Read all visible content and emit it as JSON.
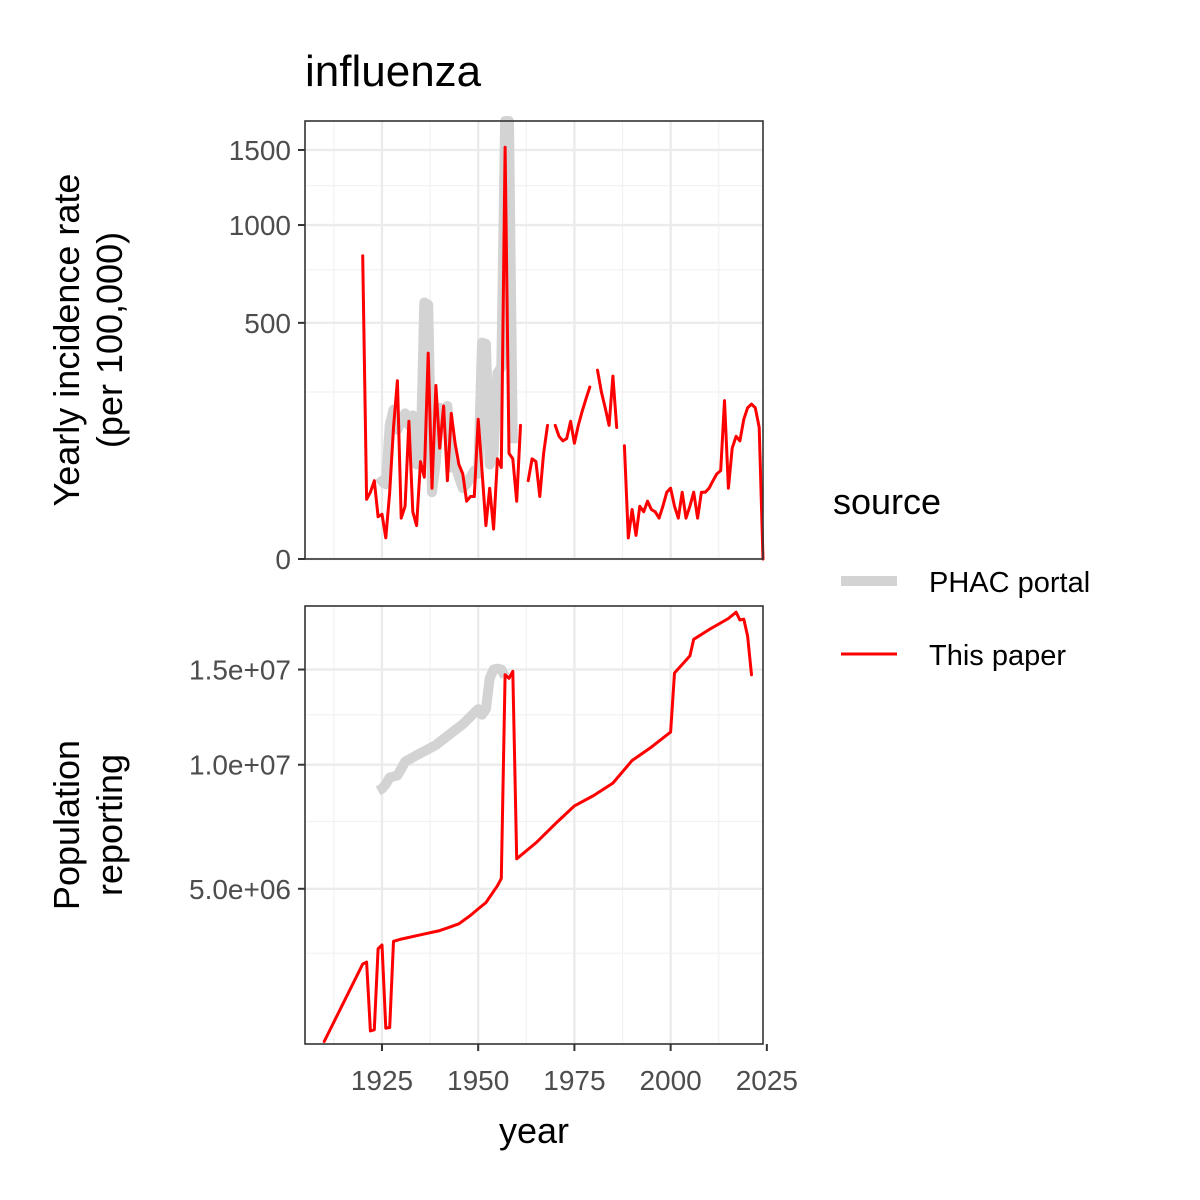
{
  "title": "influenza",
  "legend": {
    "title": "source",
    "entries": [
      {
        "label": "PHAC portal",
        "color": "#d3d3d3"
      },
      {
        "label": "This paper",
        "color": "#ff0000"
      }
    ]
  },
  "chart_data": [
    {
      "type": "line",
      "panel": "top",
      "ylabel_line1": "Yearly incidence rate",
      "ylabel_line2": "(per 100,000)",
      "xlabel": "",
      "y_scale": "sqrt",
      "ylim": [
        0,
        1720
      ],
      "xlim": [
        1905,
        2024
      ],
      "yticks": [
        0,
        500,
        1000,
        1500
      ],
      "ytick_labels": [
        "0",
        "500",
        "1000",
        "1500"
      ],
      "grid": true,
      "series": [
        {
          "name": "PHAC portal",
          "color": "#d3d3d3",
          "segments": [
            [
              [
                1924,
                50
              ],
              [
                1925,
                55
              ],
              [
                1926,
                50
              ],
              [
                1927,
                160
              ],
              [
                1928,
                200
              ],
              [
                1929,
                150
              ],
              [
                1930,
                170
              ],
              [
                1931,
                190
              ],
              [
                1932,
                160
              ],
              [
                1933,
                185
              ],
              [
                1934,
                80
              ],
              [
                1935,
                90
              ],
              [
                1936,
                590
              ],
              [
                1937,
                580
              ],
              [
                1938,
                40
              ],
              [
                1939,
                85
              ],
              [
                1940,
                205
              ],
              [
                1941,
                175
              ],
              [
                1942,
                210
              ],
              [
                1943,
                75
              ],
              [
                1944,
                80
              ],
              [
                1945,
                60
              ],
              [
                1946,
                45
              ],
              [
                1947,
                50
              ],
              [
                1948,
                60
              ],
              [
                1949,
                70
              ],
              [
                1950,
                65
              ],
              [
                1951,
                420
              ],
              [
                1952,
                415
              ],
              [
                1953,
                80
              ],
              [
                1954,
                100
              ],
              [
                1955,
                310
              ],
              [
                1956,
                330
              ],
              [
                1957,
                1720
              ],
              [
                1958,
                1720
              ],
              [
                1959,
                120
              ]
            ]
          ]
        },
        {
          "name": "This paper",
          "color": "#ff0000",
          "segments": [
            [
              [
                1920,
                825
              ],
              [
                1921,
                32
              ],
              [
                1922,
                40
              ],
              [
                1923,
                55
              ],
              [
                1924,
                16
              ],
              [
                1925,
                18
              ],
              [
                1926,
                4
              ],
              [
                1927,
                40
              ],
              [
                1928,
                155
              ],
              [
                1929,
                285
              ],
              [
                1930,
                15
              ],
              [
                1931,
                25
              ],
              [
                1932,
                170
              ],
              [
                1933,
                20
              ],
              [
                1934,
                10
              ],
              [
                1935,
                85
              ],
              [
                1936,
                60
              ],
              [
                1937,
                380
              ],
              [
                1938,
                45
              ],
              [
                1939,
                270
              ],
              [
                1940,
                110
              ],
              [
                1941,
                210
              ],
              [
                1942,
                55
              ],
              [
                1943,
                190
              ],
              [
                1944,
                120
              ],
              [
                1945,
                80
              ],
              [
                1946,
                65
              ],
              [
                1947,
                30
              ],
              [
                1948,
                35
              ],
              [
                1949,
                35
              ],
              [
                1950,
                175
              ],
              [
                1951,
                70
              ],
              [
                1952,
                10
              ],
              [
                1953,
                45
              ],
              [
                1954,
                8
              ],
              [
                1955,
                90
              ],
              [
                1956,
                75
              ],
              [
                1957,
                1520
              ],
              [
                1958,
                100
              ],
              [
                1959,
                90
              ],
              [
                1960,
                30
              ],
              [
                1961,
                160
              ]
            ],
            [
              [
                1963,
                55
              ],
              [
                1964,
                90
              ],
              [
                1965,
                85
              ],
              [
                1966,
                35
              ],
              [
                1967,
                100
              ],
              [
                1968,
                160
              ]
            ],
            [
              [
                1970,
                160
              ],
              [
                1971,
                135
              ],
              [
                1972,
                125
              ],
              [
                1973,
                130
              ],
              [
                1974,
                170
              ],
              [
                1975,
                120
              ],
              [
                1976,
                160
              ],
              [
                1977,
                195
              ],
              [
                1978,
                230
              ],
              [
                1979,
                265
              ]
            ],
            [
              [
                1981,
                320
              ],
              [
                1982,
                250
              ],
              [
                1983,
                205
              ],
              [
                1984,
                160
              ],
              [
                1985,
                300
              ],
              [
                1986,
                155
              ]
            ],
            [
              [
                1988,
                115
              ],
              [
                1989,
                4
              ],
              [
                1990,
                22
              ],
              [
                1991,
                5
              ],
              [
                1992,
                25
              ],
              [
                1993,
                20
              ],
              [
                1994,
                30
              ],
              [
                1995,
                22
              ],
              [
                1996,
                20
              ],
              [
                1997,
                15
              ],
              [
                1998,
                25
              ],
              [
                1999,
                40
              ],
              [
                2000,
                45
              ],
              [
                2001,
                25
              ],
              [
                2002,
                15
              ],
              [
                2003,
                40
              ],
              [
                2004,
                15
              ],
              [
                2005,
                25
              ],
              [
                2006,
                40
              ],
              [
                2007,
                15
              ],
              [
                2008,
                40
              ],
              [
                2009,
                40
              ],
              [
                2010,
                45
              ],
              [
                2011,
                55
              ],
              [
                2012,
                65
              ],
              [
                2013,
                70
              ],
              [
                2014,
                225
              ],
              [
                2015,
                45
              ],
              [
                2016,
                110
              ],
              [
                2017,
                135
              ],
              [
                2018,
                125
              ],
              [
                2019,
                175
              ],
              [
                2020,
                205
              ],
              [
                2021,
                215
              ],
              [
                2022,
                205
              ],
              [
                2023,
                155
              ],
              [
                2024,
                0
              ]
            ]
          ]
        }
      ]
    },
    {
      "type": "line",
      "panel": "bottom",
      "ylabel_line1": "Population",
      "ylabel_line2": "reporting",
      "xlabel": "year",
      "y_scale": "sqrt",
      "ylim": [
        1160000,
        18900000
      ],
      "xlim": [
        1905,
        2024
      ],
      "yticks": [
        5000000,
        10000000,
        15000000
      ],
      "ytick_labels": [
        "5.0e+06",
        "1.0e+07",
        "1.5e+07"
      ],
      "xticks": [
        1925,
        1950,
        1975,
        2000,
        2025
      ],
      "xtick_labels": [
        "1925",
        "1950",
        "1975",
        "2000",
        "2025"
      ],
      "grid": true,
      "series": [
        {
          "name": "PHAC portal",
          "color": "#d3d3d3",
          "segments": [
            [
              [
                1924,
                8800000
              ],
              [
                1925,
                8900000
              ],
              [
                1926,
                9100000
              ],
              [
                1927,
                9400000
              ],
              [
                1928,
                9450000
              ],
              [
                1929,
                9500000
              ],
              [
                1930,
                9800000
              ],
              [
                1931,
                10150000
              ],
              [
                1932,
                10250000
              ],
              [
                1933,
                10350000
              ],
              [
                1934,
                10450000
              ],
              [
                1935,
                10550000
              ],
              [
                1936,
                10650000
              ],
              [
                1937,
                10750000
              ],
              [
                1938,
                10850000
              ],
              [
                1939,
                10950000
              ],
              [
                1940,
                11100000
              ],
              [
                1941,
                11250000
              ],
              [
                1942,
                11400000
              ],
              [
                1943,
                11550000
              ],
              [
                1944,
                11700000
              ],
              [
                1945,
                11850000
              ],
              [
                1946,
                12000000
              ],
              [
                1947,
                12200000
              ],
              [
                1948,
                12400000
              ],
              [
                1949,
                12600000
              ],
              [
                1950,
                12800000
              ],
              [
                1951,
                12500000
              ],
              [
                1952,
                12800000
              ],
              [
                1953,
                14500000
              ],
              [
                1954,
                15000000
              ],
              [
                1955,
                15050000
              ],
              [
                1956,
                15000000
              ],
              [
                1957,
                14600000
              ]
            ]
          ]
        },
        {
          "name": "This paper",
          "color": "#ff0000",
          "segments": [
            [
              [
                1910,
                1200000
              ],
              [
                1920,
                2800000
              ],
              [
                1921,
                2850000
              ],
              [
                1922,
                1380000
              ],
              [
                1923,
                1400000
              ],
              [
                1924,
                3200000
              ],
              [
                1925,
                3300000
              ],
              [
                1926,
                1430000
              ],
              [
                1927,
                1440000
              ],
              [
                1928,
                3400000
              ],
              [
                1930,
                3460000
              ],
              [
                1935,
                3580000
              ],
              [
                1940,
                3700000
              ],
              [
                1942,
                3780000
              ],
              [
                1945,
                3900000
              ],
              [
                1948,
                4150000
              ],
              [
                1950,
                4350000
              ],
              [
                1952,
                4550000
              ],
              [
                1955,
                5100000
              ],
              [
                1956,
                5350000
              ],
              [
                1957,
                14700000
              ],
              [
                1958,
                14500000
              ],
              [
                1959,
                14900000
              ],
              [
                1960,
                6050000
              ],
              [
                1965,
                6650000
              ],
              [
                1970,
                7400000
              ],
              [
                1975,
                8150000
              ],
              [
                1980,
                8600000
              ],
              [
                1985,
                9150000
              ],
              [
                1990,
                10200000
              ],
              [
                1995,
                10850000
              ],
              [
                2000,
                11600000
              ],
              [
                2001,
                14800000
              ],
              [
                2005,
                15800000
              ],
              [
                2006,
                16800000
              ],
              [
                2010,
                17400000
              ],
              [
                2015,
                18100000
              ],
              [
                2017,
                18500000
              ],
              [
                2018,
                18000000
              ],
              [
                2019,
                18050000
              ],
              [
                2020,
                17000000
              ],
              [
                2021,
                14700000
              ]
            ]
          ]
        }
      ]
    }
  ]
}
